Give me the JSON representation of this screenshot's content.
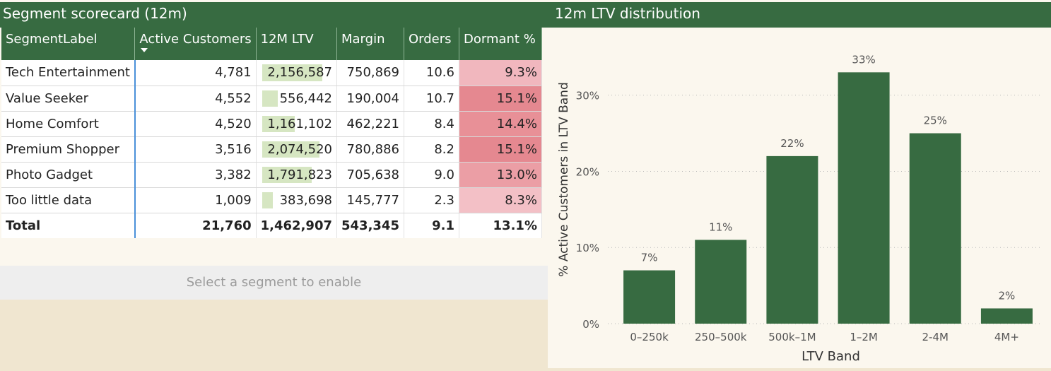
{
  "scorecard": {
    "title": "Segment scorecard (12m)",
    "columns": [
      "SegmentLabel",
      "Active Customers",
      "12M LTV",
      "Margin",
      "Orders",
      "Dormant %"
    ],
    "rows": [
      {
        "segment": "Tech Entertainment",
        "active": "4,781",
        "ltv": "2,156,587",
        "ltv_fraction": 1.0,
        "margin": "750,869",
        "orders": "10.6",
        "dormant": "9.3%",
        "dormant_color": "#f1b7be"
      },
      {
        "segment": "Value Seeker",
        "active": "4,552",
        "ltv": "556,442",
        "ltv_fraction": 0.26,
        "margin": "190,004",
        "orders": "10.7",
        "dormant": "15.1%",
        "dormant_color": "#e58890"
      },
      {
        "segment": "Home Comfort",
        "active": "4,520",
        "ltv": "1,161,102",
        "ltv_fraction": 0.54,
        "margin": "462,221",
        "orders": "8.4",
        "dormant": "14.4%",
        "dormant_color": "#e89097"
      },
      {
        "segment": "Premium Shopper",
        "active": "3,516",
        "ltv": "2,074,520",
        "ltv_fraction": 0.96,
        "margin": "780,886",
        "orders": "8.2",
        "dormant": "15.1%",
        "dormant_color": "#e58890"
      },
      {
        "segment": "Photo Gadget",
        "active": "3,382",
        "ltv": "1,791,823",
        "ltv_fraction": 0.83,
        "margin": "705,638",
        "orders": "9.0",
        "dormant": "13.0%",
        "dormant_color": "#eb9ea5"
      },
      {
        "segment": "Too little data",
        "active": "1,009",
        "ltv": "383,698",
        "ltv_fraction": 0.18,
        "margin": "145,777",
        "orders": "2.3",
        "dormant": "8.3%",
        "dormant_color": "#f3c0c6"
      }
    ],
    "total": {
      "label": "Total",
      "active": "21,760",
      "ltv": "1,462,907",
      "margin": "543,345",
      "orders": "9.1",
      "dormant": "13.1%"
    }
  },
  "action_button": {
    "label": "Select a segment to enable"
  },
  "chart_panel": {
    "title": "12m LTV distribution"
  },
  "chart_data": {
    "type": "bar",
    "categories": [
      "0–250k",
      "250–500k",
      "500k–1M",
      "1–2M",
      "2-4M",
      "4M+"
    ],
    "values": [
      7,
      11,
      22,
      33,
      25,
      2
    ],
    "data_labels": [
      "7%",
      "11%",
      "22%",
      "33%",
      "25%",
      "2%"
    ],
    "xlabel": "LTV Band",
    "ylabel": "% Active Customers in LTV Band",
    "yticks": [
      "0%",
      "10%",
      "20%",
      "30%"
    ],
    "ylim": [
      0,
      36
    ],
    "grid": true,
    "bar_color": "#376b41"
  }
}
